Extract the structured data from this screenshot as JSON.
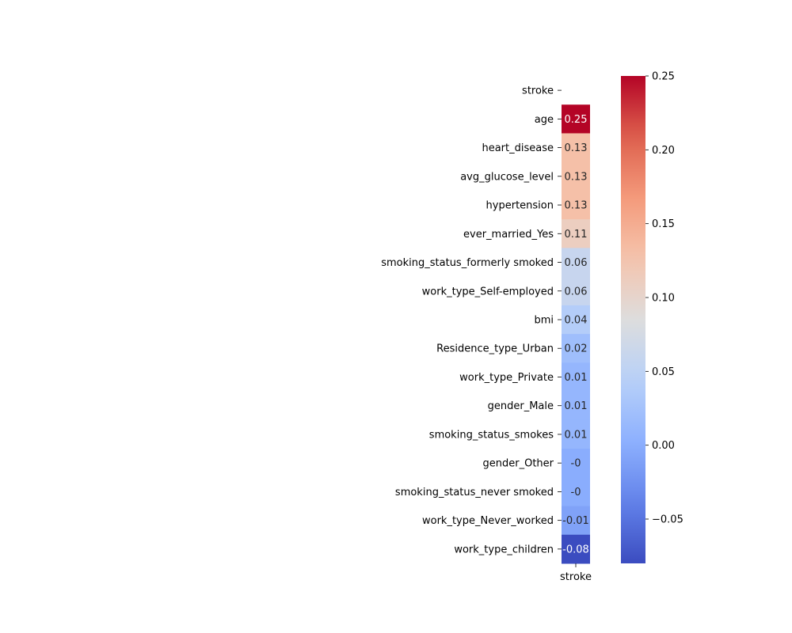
{
  "chart_data": {
    "type": "heatmap",
    "title": "",
    "column_labels": [
      "stroke"
    ],
    "row_labels": [
      "stroke",
      "age",
      "heart_disease",
      "avg_glucose_level",
      "hypertension",
      "ever_married_Yes",
      "smoking_status_formerly smoked",
      "work_type_Self-employed",
      "bmi",
      "Residence_type_Urban",
      "work_type_Private",
      "gender_Male",
      "smoking_status_smokes",
      "gender_Other",
      "smoking_status_never smoked",
      "work_type_Never_worked",
      "work_type_children"
    ],
    "values": [
      null,
      0.25,
      0.13,
      0.13,
      0.13,
      0.11,
      0.06,
      0.06,
      0.04,
      0.02,
      0.01,
      0.01,
      0.01,
      -0.0,
      -0.0,
      -0.01,
      -0.08
    ],
    "cell_labels": [
      "",
      "0.25",
      "0.13",
      "0.13",
      "0.13",
      "0.11",
      "0.06",
      "0.06",
      "0.04",
      "0.02",
      "0.01",
      "0.01",
      "0.01",
      "-0",
      "-0",
      "-0.01",
      "-0.08"
    ],
    "colormap": "coolwarm",
    "color_range": [
      -0.08,
      0.25
    ],
    "colorbar": {
      "ticks": [
        -0.05,
        0.0,
        0.05,
        0.1,
        0.15,
        0.2,
        0.25
      ],
      "tick_labels": [
        "−0.05",
        "0.00",
        "0.05",
        "0.10",
        "0.15",
        "0.20",
        "0.25"
      ]
    }
  }
}
